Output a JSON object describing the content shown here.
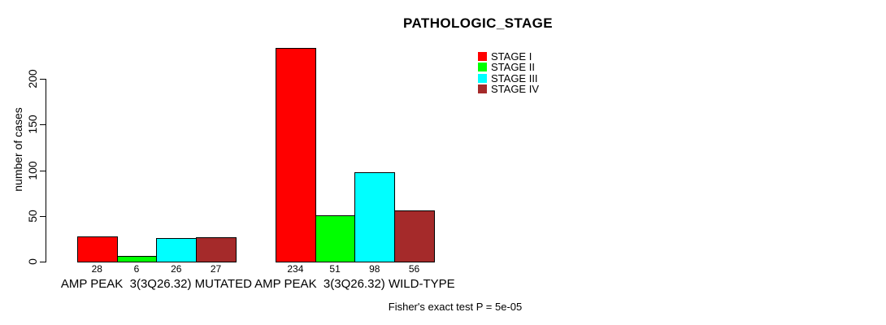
{
  "chart_data": {
    "type": "bar",
    "title": "PATHOLOGIC_STAGE",
    "ylabel": "number of cases",
    "xlabel": "",
    "categories": [
      "AMP PEAK  3(3Q26.32) MUTATED",
      "AMP PEAK  3(3Q26.32) WILD-TYPE"
    ],
    "series": [
      {
        "name": "STAGE I",
        "color": "#ff0000",
        "values": [
          28,
          234
        ]
      },
      {
        "name": "STAGE II",
        "color": "#00ff00",
        "values": [
          6,
          51
        ]
      },
      {
        "name": "STAGE III",
        "color": "#00ffff",
        "values": [
          26,
          98
        ]
      },
      {
        "name": "STAGE IV",
        "color": "#a52a2a",
        "values": [
          27,
          56
        ]
      }
    ],
    "yticks": [
      0,
      50,
      100,
      150,
      200
    ],
    "ylim": [
      0,
      234
    ],
    "grid": false,
    "legend_position": "top-right",
    "bar_value_labels": true,
    "annotation": "Fisher's exact test P = 5e-05"
  }
}
